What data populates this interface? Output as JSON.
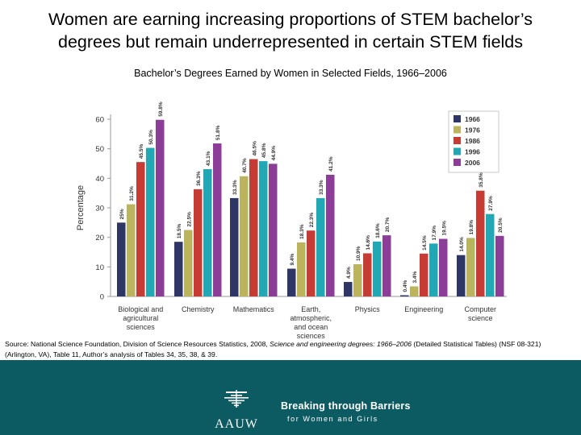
{
  "page": {
    "title_line1": "Women are earning increasing proportions of STEM bachelor’s",
    "title_line2": "degrees but remain underrepresented in certain STEM fields",
    "subtitle": "Bachelor’s Degrees Earned by Women in Selected Fields, 1966–2006"
  },
  "chart_data": {
    "type": "bar",
    "ylabel": "Percentage",
    "ylim": [
      0,
      60
    ],
    "yticks": [
      0,
      10,
      20,
      30,
      40,
      50,
      60
    ],
    "categories": [
      [
        "Biological and",
        "agricultural",
        "sciences"
      ],
      [
        "Chemistry"
      ],
      [
        "Mathematics"
      ],
      [
        "Earth,",
        "atmospheric,",
        "and ocean",
        "sciences"
      ],
      [
        "Physics"
      ],
      [
        "Engineering"
      ],
      [
        "Computer",
        "science"
      ]
    ],
    "series": [
      {
        "name": "1966",
        "color": "#2e3666",
        "values": [
          25,
          18.5,
          33.3,
          9.4,
          4.9,
          0.4,
          14.0
        ],
        "labels": [
          "25%",
          "18.5%",
          "33.3%",
          "9.4%",
          "4.9%",
          "0.4%",
          "14.0%"
        ]
      },
      {
        "name": "1976",
        "color": "#bcb35d",
        "values": [
          31.2,
          22.5,
          40.7,
          18.3,
          10.9,
          3.4,
          19.8
        ],
        "labels": [
          "31.2%",
          "22.5%",
          "40.7%",
          "18.3%",
          "10.9%",
          "3.4%",
          "19.8%"
        ]
      },
      {
        "name": "1986",
        "color": "#c63b33",
        "values": [
          45.5,
          36.3,
          46.5,
          22.3,
          14.6,
          14.5,
          35.8
        ],
        "labels": [
          "45.5%",
          "36.3%",
          "46.5%",
          "22.3%",
          "14.6%",
          "14.5%",
          "35.8%"
        ]
      },
      {
        "name": "1996",
        "color": "#22a8b5",
        "values": [
          50.3,
          43.1,
          45.8,
          33.3,
          18.6,
          17.9,
          27.9
        ],
        "labels": [
          "50.3%",
          "43.1%",
          "45.8%",
          "33.3%",
          "18.6%",
          "17.9%",
          "27.9%"
        ]
      },
      {
        "name": "2006",
        "color": "#8b3d97",
        "values": [
          59.8,
          51.8,
          44.9,
          41.2,
          20.7,
          19.5,
          20.5
        ],
        "labels": [
          "59.8%",
          "51.8%",
          "44.9%",
          "41.2%",
          "20.7%",
          "19.5%",
          "20.5%"
        ]
      }
    ]
  },
  "source": {
    "prefix": "Source: National Science Foundation, Division of Science Resources Statistics, 2008, ",
    "italic": "Science and engineering degrees: 1966–2006",
    "suffix": " (Detailed Statistical Tables) (NSF 08-321)",
    "line2": "(Arlington, VA), Table 11, Author’s analysis of Tables 34, 35, 38, & 39."
  },
  "footer": {
    "logo": "AAUW",
    "tagline_main": "Breaking through Barriers",
    "tagline_sub": "for Women and Girls",
    "background": "#0c5b62"
  }
}
